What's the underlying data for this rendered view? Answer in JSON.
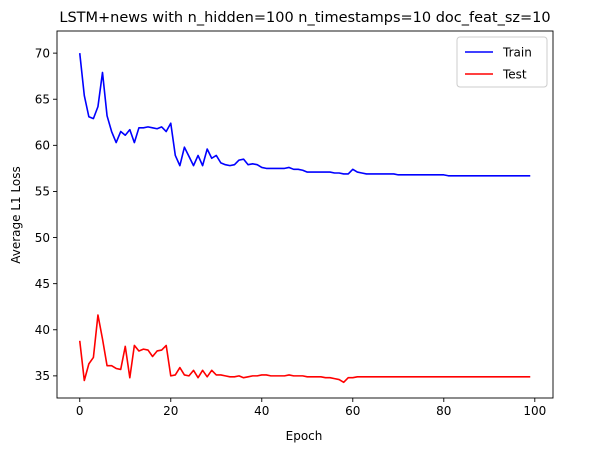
{
  "chart_data": {
    "type": "line",
    "title": "LSTM+news with n_hidden=100 n_timestamps=10 doc_feat_sz=10",
    "xlabel": "Epoch",
    "ylabel": "Average L1 Loss",
    "xlim": [
      -5,
      104
    ],
    "ylim": [
      32.6,
      72.4
    ],
    "xticks": [
      0,
      20,
      40,
      60,
      80,
      100
    ],
    "yticks": [
      35,
      40,
      45,
      50,
      55,
      60,
      65,
      70
    ],
    "grid": false,
    "legend": "top-right",
    "x": [
      0,
      1,
      2,
      3,
      4,
      5,
      6,
      7,
      8,
      9,
      10,
      11,
      12,
      13,
      14,
      15,
      16,
      17,
      18,
      19,
      20,
      21,
      22,
      23,
      24,
      25,
      26,
      27,
      28,
      29,
      30,
      31,
      32,
      33,
      34,
      35,
      36,
      37,
      38,
      39,
      40,
      41,
      42,
      43,
      44,
      45,
      46,
      47,
      48,
      49,
      50,
      51,
      52,
      53,
      54,
      55,
      56,
      57,
      58,
      59,
      60,
      61,
      62,
      63,
      64,
      65,
      66,
      67,
      68,
      69,
      70,
      71,
      72,
      73,
      74,
      75,
      76,
      77,
      78,
      79,
      80,
      81,
      82,
      83,
      84,
      85,
      86,
      87,
      88,
      89,
      90,
      91,
      92,
      93,
      94,
      95,
      96,
      97,
      98,
      99
    ],
    "series": [
      {
        "name": "Train",
        "color": "#0000ff",
        "values": [
          70.0,
          65.4,
          63.1,
          62.9,
          64.2,
          67.9,
          63.2,
          61.5,
          60.3,
          61.5,
          61.1,
          61.7,
          60.3,
          61.9,
          61.9,
          62.0,
          61.9,
          61.8,
          62.0,
          61.5,
          62.4,
          58.9,
          57.8,
          59.8,
          58.8,
          57.8,
          58.9,
          57.8,
          59.6,
          58.6,
          58.9,
          58.1,
          57.9,
          57.8,
          57.9,
          58.4,
          58.5,
          57.9,
          58.0,
          57.9,
          57.6,
          57.5,
          57.5,
          57.5,
          57.5,
          57.5,
          57.6,
          57.4,
          57.4,
          57.3,
          57.1,
          57.1,
          57.1,
          57.1,
          57.1,
          57.1,
          57.0,
          57.0,
          56.9,
          56.9,
          57.4,
          57.1,
          57.0,
          56.9,
          56.9,
          56.9,
          56.9,
          56.9,
          56.9,
          56.9,
          56.8,
          56.8,
          56.8,
          56.8,
          56.8,
          56.8,
          56.8,
          56.8,
          56.8,
          56.8,
          56.8,
          56.7,
          56.7,
          56.7,
          56.7,
          56.7,
          56.7,
          56.7,
          56.7,
          56.7,
          56.7,
          56.7,
          56.7,
          56.7,
          56.7,
          56.7,
          56.7,
          56.7,
          56.7,
          56.7
        ]
      },
      {
        "name": "Test",
        "color": "#ff0000",
        "values": [
          38.8,
          34.5,
          36.3,
          37.0,
          41.6,
          39.0,
          36.1,
          36.1,
          35.8,
          35.7,
          38.2,
          34.8,
          38.3,
          37.7,
          37.9,
          37.8,
          37.1,
          37.7,
          37.8,
          38.3,
          35.0,
          35.1,
          35.9,
          35.1,
          35.0,
          35.6,
          34.8,
          35.6,
          34.9,
          35.6,
          35.1,
          35.1,
          35.0,
          34.9,
          34.9,
          35.0,
          34.8,
          34.9,
          35.0,
          35.0,
          35.1,
          35.1,
          35.0,
          35.0,
          35.0,
          35.0,
          35.1,
          35.0,
          35.0,
          35.0,
          34.9,
          34.9,
          34.9,
          34.9,
          34.8,
          34.8,
          34.7,
          34.6,
          34.3,
          34.8,
          34.8,
          34.9,
          34.9,
          34.9,
          34.9,
          34.9,
          34.9,
          34.9,
          34.9,
          34.9,
          34.9,
          34.9,
          34.9,
          34.9,
          34.9,
          34.9,
          34.9,
          34.9,
          34.9,
          34.9,
          34.9,
          34.9,
          34.9,
          34.9,
          34.9,
          34.9,
          34.9,
          34.9,
          34.9,
          34.9,
          34.9,
          34.9,
          34.9,
          34.9,
          34.9,
          34.9,
          34.9,
          34.9,
          34.9,
          34.9
        ]
      }
    ]
  }
}
